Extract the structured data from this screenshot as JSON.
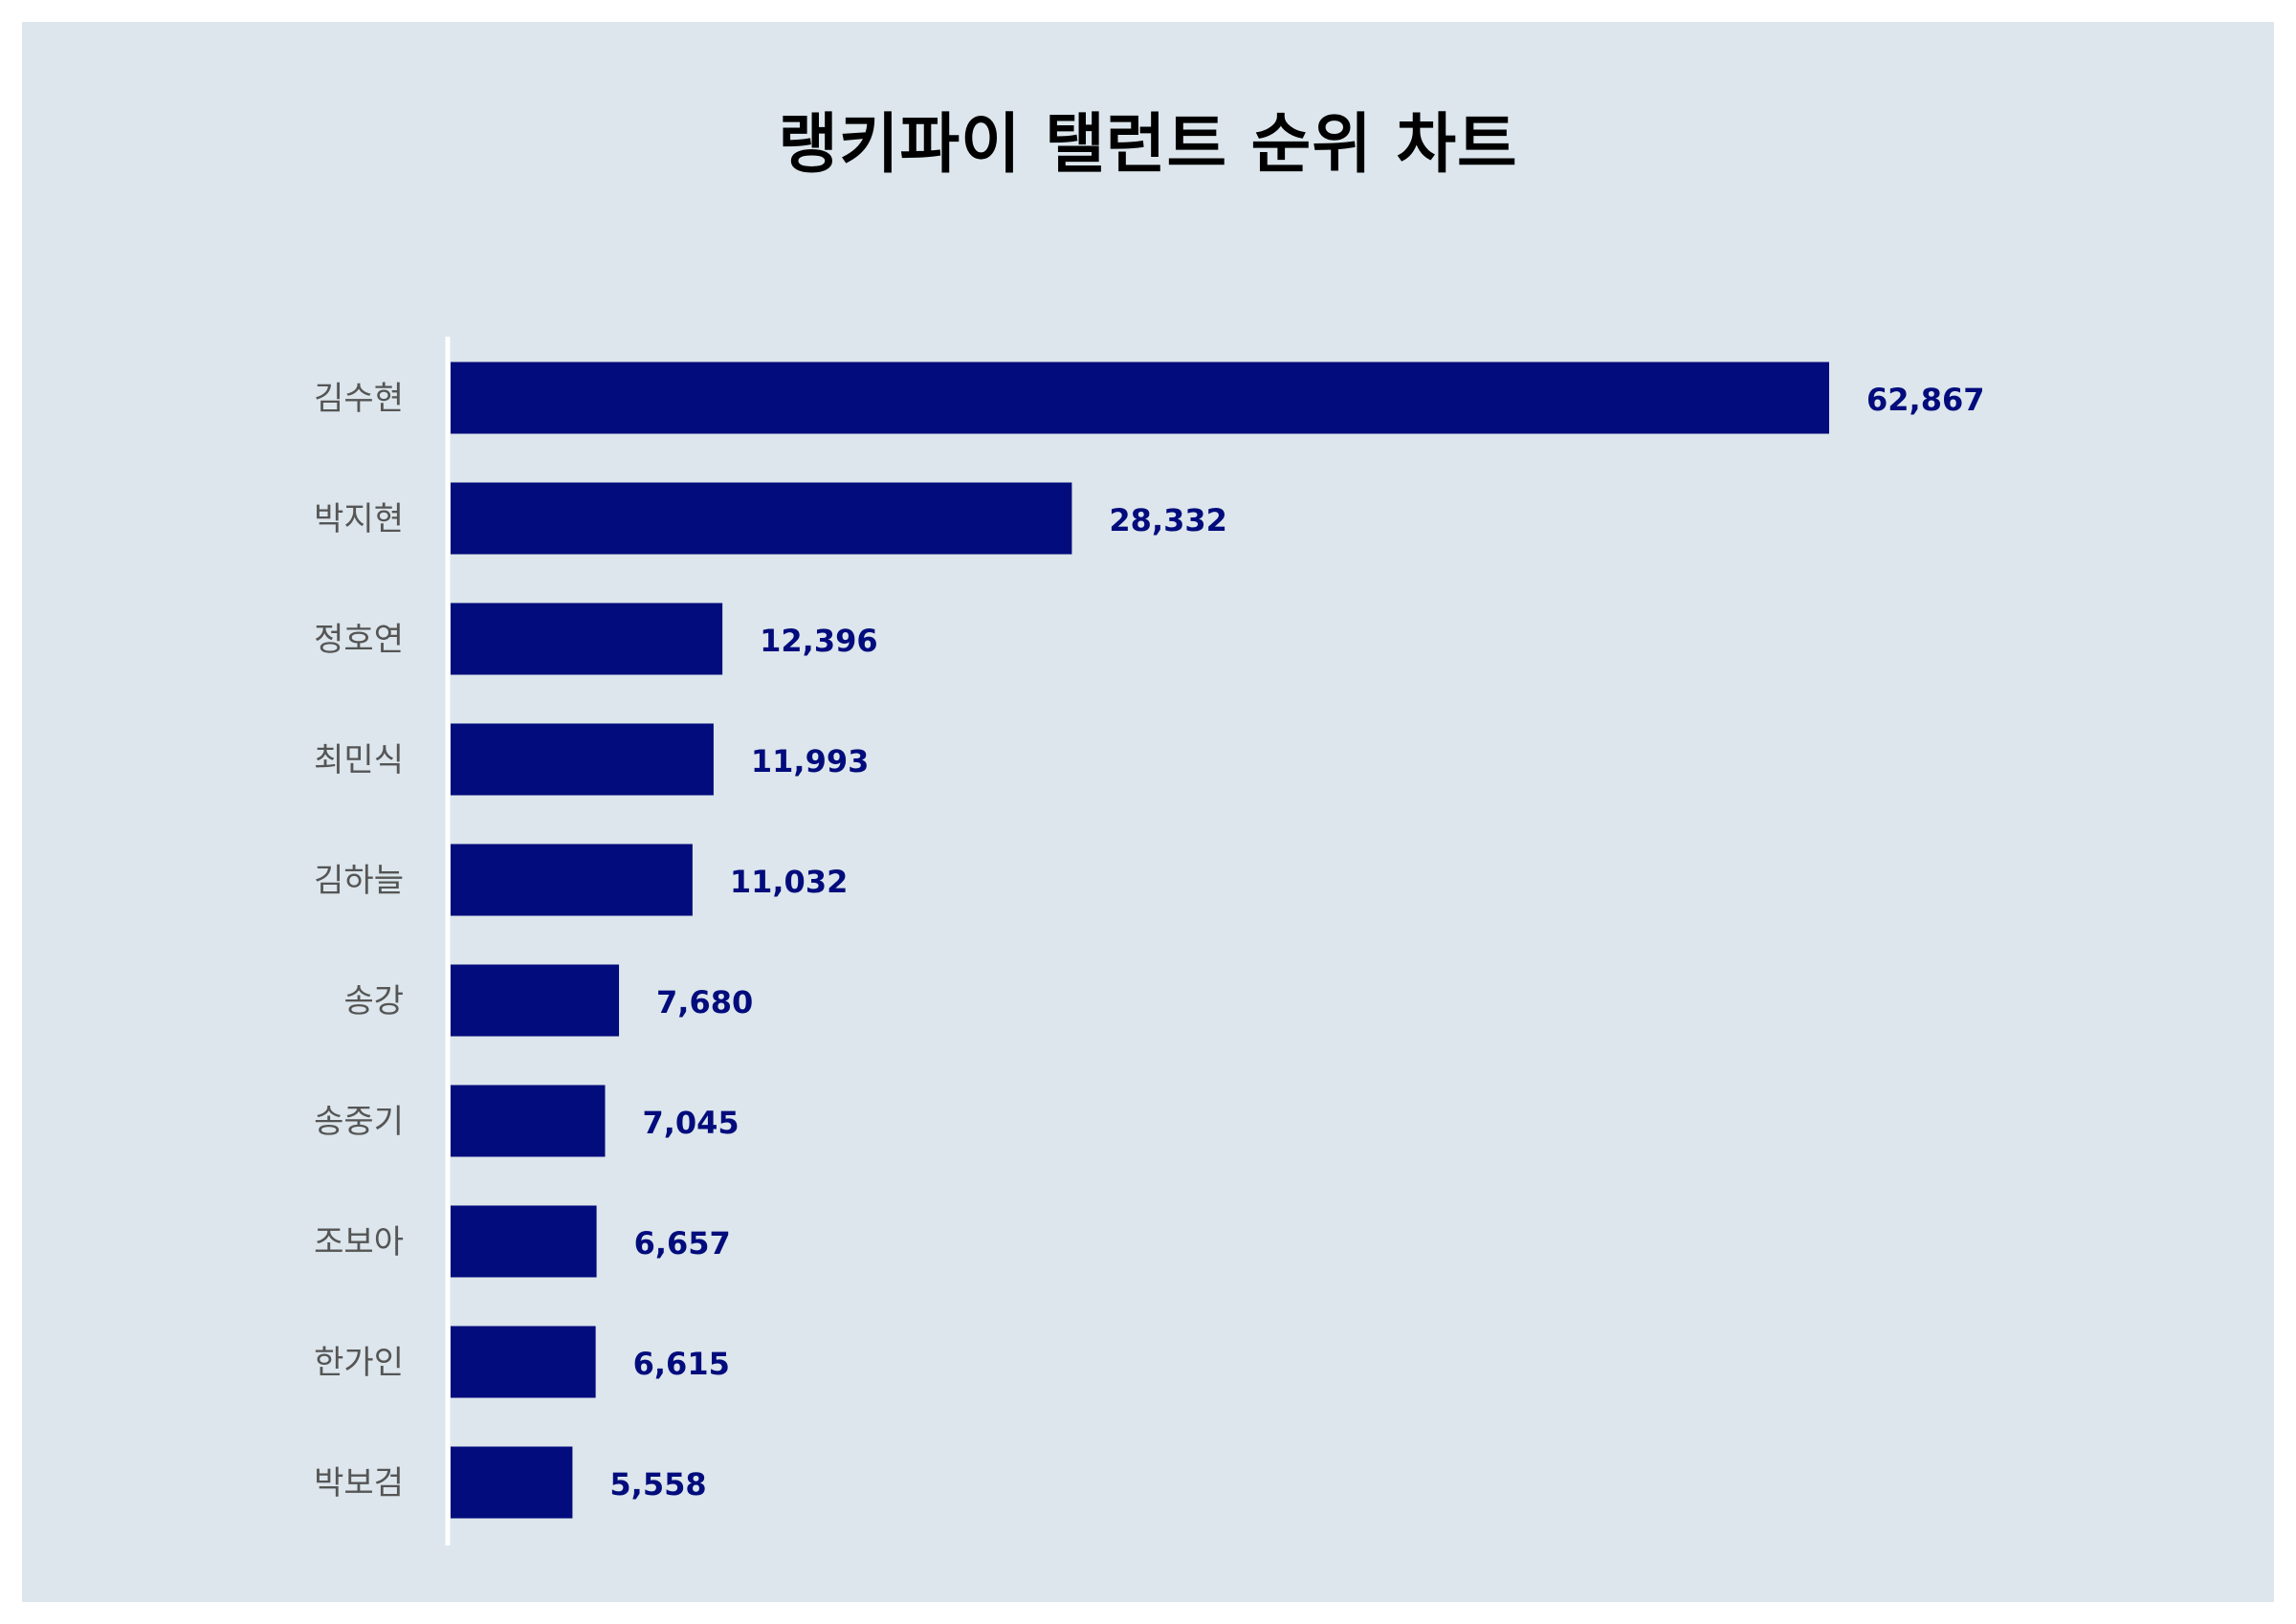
{
  "title": "랭키파이 탤런트 순위 차트",
  "colors": {
    "background": "#dce6ec",
    "bar": "#020c7c",
    "value_label": "#020c7c",
    "category_label": "#555555",
    "axis_line": "#ffffff"
  },
  "chart_data": {
    "type": "bar",
    "orientation": "horizontal",
    "title": "랭키파이 탤런트 순위 차트",
    "categories": [
      "김수현",
      "박지현",
      "정호연",
      "최민식",
      "김하늘",
      "송강",
      "송중기",
      "조보아",
      "한가인",
      "박보검"
    ],
    "values": [
      62867,
      28332,
      12396,
      11993,
      11032,
      7680,
      7045,
      6657,
      6615,
      5558
    ],
    "value_labels": [
      "62,867",
      "28,332",
      "12,396",
      "11,993",
      "11,032",
      "7,680",
      "7,045",
      "6,657",
      "6,615",
      "5,558"
    ],
    "xlim": [
      0,
      70000
    ],
    "xlabel": "",
    "ylabel": "",
    "grid": false,
    "legend": "none"
  }
}
